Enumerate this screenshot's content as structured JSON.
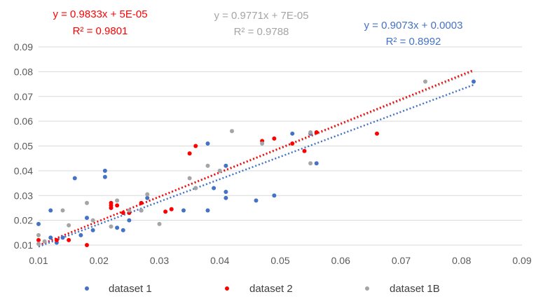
{
  "chart_data": {
    "type": "scatter",
    "xlim": [
      0.01,
      0.09
    ],
    "ylim": [
      0.01,
      0.09
    ],
    "x_ticks": [
      "0.01",
      "0.02",
      "0.03",
      "0.04",
      "0.05",
      "0.06",
      "0.07",
      "0.08",
      "0.09"
    ],
    "y_ticks": [
      "0.01",
      "0.02",
      "0.03",
      "0.04",
      "0.05",
      "0.06",
      "0.07",
      "0.08",
      "0.09"
    ],
    "grid": "horizontal",
    "legend_position": "bottom",
    "series": [
      {
        "name": "dataset 1",
        "color": "#4472C4",
        "trendline": {
          "slope": 0.9073,
          "intercept": 0.0003,
          "x_range": [
            0.01,
            0.082
          ],
          "equation": "y = 0.9073x + 0.0003",
          "r2": "R² = 0.8992"
        },
        "points": [
          [
            0.01,
            0.0185
          ],
          [
            0.012,
            0.024
          ],
          [
            0.012,
            0.013
          ],
          [
            0.013,
            0.011
          ],
          [
            0.014,
            0.013
          ],
          [
            0.016,
            0.037
          ],
          [
            0.017,
            0.014
          ],
          [
            0.018,
            0.021
          ],
          [
            0.019,
            0.016
          ],
          [
            0.021,
            0.04
          ],
          [
            0.021,
            0.0375
          ],
          [
            0.022,
            0.025
          ],
          [
            0.023,
            0.017
          ],
          [
            0.024,
            0.016
          ],
          [
            0.025,
            0.02
          ],
          [
            0.027,
            0.024
          ],
          [
            0.028,
            0.029
          ],
          [
            0.034,
            0.024
          ],
          [
            0.036,
            0.033
          ],
          [
            0.038,
            0.051
          ],
          [
            0.038,
            0.024
          ],
          [
            0.039,
            0.033
          ],
          [
            0.041,
            0.042
          ],
          [
            0.041,
            0.0315
          ],
          [
            0.041,
            0.029
          ],
          [
            0.046,
            0.028
          ],
          [
            0.049,
            0.03
          ],
          [
            0.052,
            0.055
          ],
          [
            0.055,
            0.055
          ],
          [
            0.056,
            0.043
          ],
          [
            0.082,
            0.076
          ]
        ]
      },
      {
        "name": "dataset 2",
        "color": "#FF0000",
        "trendline": {
          "slope": 0.9833,
          "intercept": 5e-05,
          "x_range": [
            0.01,
            0.082
          ],
          "equation": "y = 0.9833x + 5E-05",
          "r2": "R² = 0.9801"
        },
        "points": [
          [
            0.01,
            0.012
          ],
          [
            0.013,
            0.012
          ],
          [
            0.015,
            0.012
          ],
          [
            0.018,
            0.01
          ],
          [
            0.022,
            0.027
          ],
          [
            0.022,
            0.026
          ],
          [
            0.022,
            0.025
          ],
          [
            0.023,
            0.026
          ],
          [
            0.024,
            0.023
          ],
          [
            0.025,
            0.023
          ],
          [
            0.027,
            0.027
          ],
          [
            0.031,
            0.0235
          ],
          [
            0.032,
            0.0245
          ],
          [
            0.035,
            0.047
          ],
          [
            0.036,
            0.05
          ],
          [
            0.047,
            0.052
          ],
          [
            0.049,
            0.053
          ],
          [
            0.052,
            0.051
          ],
          [
            0.054,
            0.048
          ],
          [
            0.056,
            0.0555
          ],
          [
            0.066,
            0.055
          ]
        ]
      },
      {
        "name": "dataset 1B",
        "color": "#A5A5A5",
        "trendline": {
          "slope": 0.9771,
          "intercept": 7e-05,
          "x_range": [
            0.01,
            0.082
          ],
          "equation": "y = 0.9771x + 7E-05",
          "r2": "R² = 0.9788"
        },
        "points": [
          [
            0.01,
            0.0105
          ],
          [
            0.01,
            0.014
          ],
          [
            0.011,
            0.0115
          ],
          [
            0.014,
            0.024
          ],
          [
            0.015,
            0.018
          ],
          [
            0.018,
            0.027
          ],
          [
            0.019,
            0.02
          ],
          [
            0.022,
            0.0175
          ],
          [
            0.023,
            0.028
          ],
          [
            0.025,
            0.024
          ],
          [
            0.027,
            0.024
          ],
          [
            0.028,
            0.0305
          ],
          [
            0.03,
            0.0185
          ],
          [
            0.035,
            0.037
          ],
          [
            0.036,
            0.033
          ],
          [
            0.038,
            0.042
          ],
          [
            0.04,
            0.04
          ],
          [
            0.042,
            0.056
          ],
          [
            0.047,
            0.051
          ],
          [
            0.055,
            0.043
          ],
          [
            0.055,
            0.0555
          ],
          [
            0.074,
            0.076
          ]
        ]
      }
    ]
  }
}
